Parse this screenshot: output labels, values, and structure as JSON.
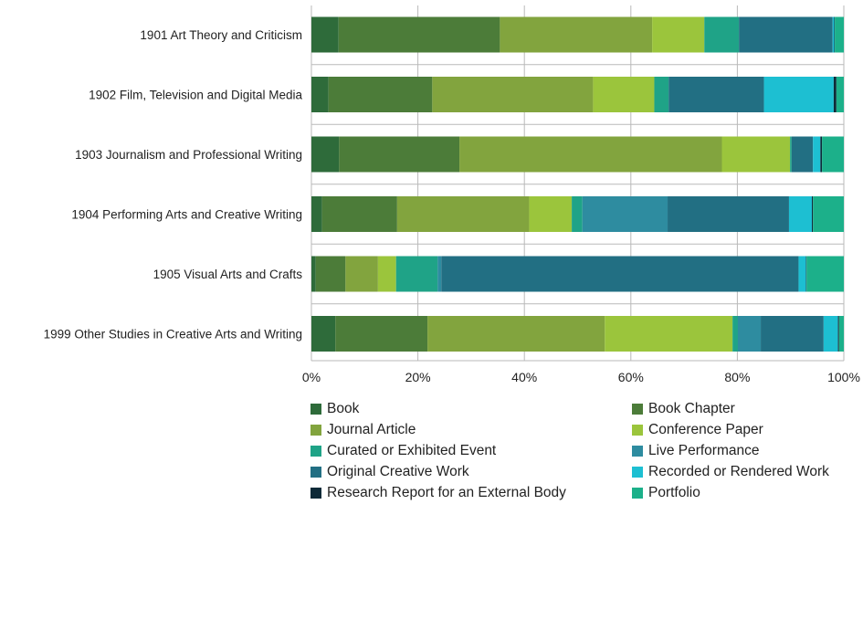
{
  "chart_data": {
    "type": "bar",
    "orientation": "horizontal",
    "stacked": true,
    "normalized": true,
    "title": "",
    "xlabel": "",
    "ylabel": "",
    "xlim": [
      0,
      100
    ],
    "x_ticks": [
      "0%",
      "20%",
      "40%",
      "60%",
      "80%",
      "100%"
    ],
    "grid": true,
    "legend_position": "bottom",
    "categories": [
      "1901 Art Theory and Criticism",
      "1902 Film, Television and Digital Media",
      "1903 Journalism and Professional Writing",
      "1904 Performing Arts and Creative Writing",
      "1905 Visual Arts and Crafts",
      "1999 Other Studies in Creative Arts and Writing"
    ],
    "series": [
      {
        "name": "Book",
        "color": "#2e6b3a",
        "values": [
          5.1,
          3.2,
          5.2,
          2.0,
          0.8,
          4.5
        ]
      },
      {
        "name": "Book Chapter",
        "color": "#4c7c39",
        "values": [
          30.3,
          19.5,
          22.6,
          14.1,
          5.6,
          17.3
        ]
      },
      {
        "name": "Journal Article",
        "color": "#82a43e",
        "values": [
          28.6,
          30.2,
          49.3,
          24.8,
          6.1,
          33.3
        ]
      },
      {
        "name": "Conference Paper",
        "color": "#9bc53c",
        "values": [
          9.8,
          11.5,
          12.8,
          8.0,
          3.4,
          24.0
        ]
      },
      {
        "name": "Curated or Exhibited Event",
        "color": "#1fa387",
        "values": [
          6.5,
          2.7,
          0.3,
          2.0,
          7.8,
          1.0
        ]
      },
      {
        "name": "Live Performance",
        "color": "#2e8ca0",
        "values": [
          0.0,
          0.0,
          0.0,
          16.0,
          0.7,
          4.3
        ]
      },
      {
        "name": "Original Creative Work",
        "color": "#226f83",
        "values": [
          17.6,
          17.9,
          4.0,
          22.8,
          67.1,
          11.8
        ]
      },
      {
        "name": "Recorded or Rendered Work",
        "color": "#1dbfd2",
        "values": [
          0.3,
          13.1,
          1.4,
          4.3,
          1.4,
          2.7
        ]
      },
      {
        "name": "Research Report for an External Body",
        "color": "#0e2a38",
        "values": [
          0.1,
          0.5,
          0.3,
          0.2,
          0.1,
          0.2
        ]
      },
      {
        "name": "Portfolio",
        "color": "#1cb08a",
        "values": [
          1.7,
          1.4,
          4.1,
          5.8,
          7.0,
          0.9
        ]
      }
    ]
  }
}
